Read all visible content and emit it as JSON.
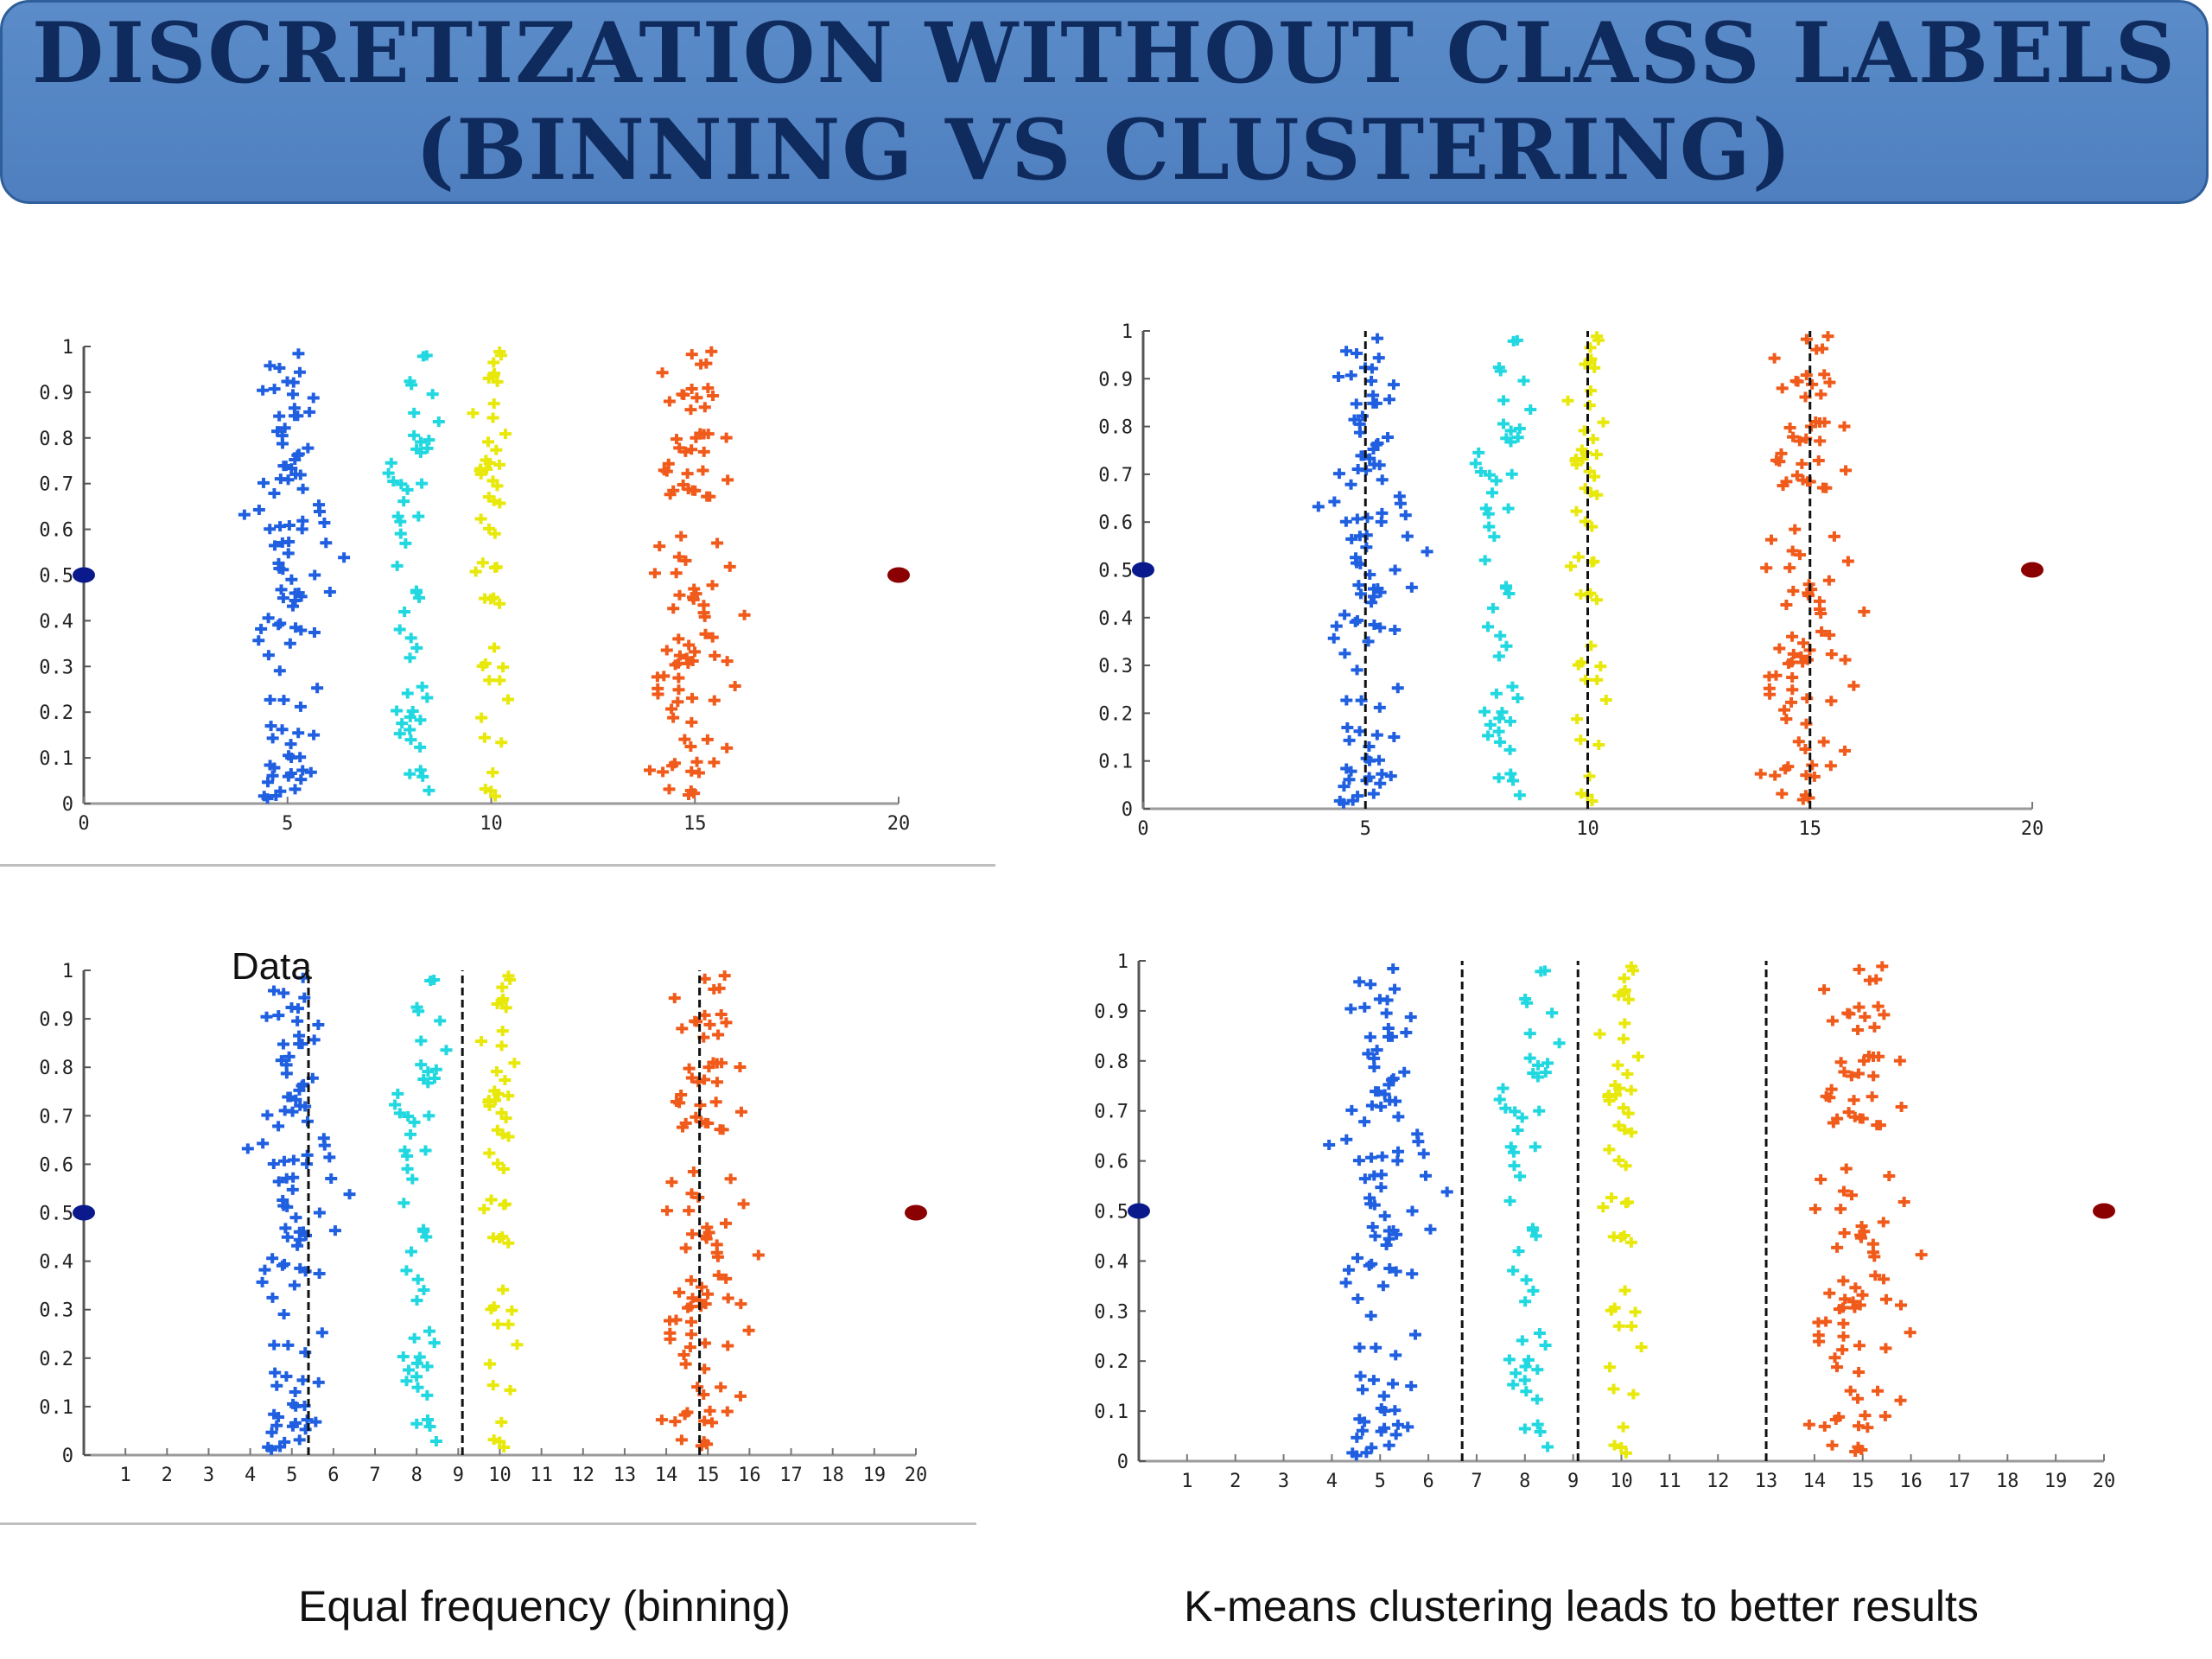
{
  "title": {
    "line1": "DISCRETIZATION WITHOUT CLASS LABELS",
    "line2": "(BINNING VS CLUSTERING)"
  },
  "colors": {
    "banner": "#4f7fbf",
    "title_text": "#0f2a5c",
    "cluster_blue": "#1f5fe0",
    "cluster_cyan": "#22d8e0",
    "cluster_yellow": "#e8e80a",
    "cluster_orange": "#f05a1a",
    "left_marker": "#0a1a8c",
    "right_marker": "#8b0000"
  },
  "captions": {
    "left": "Equal frequency (binning)",
    "right": "K-means clustering leads to better results"
  },
  "chart_data": [
    {
      "type": "scatter",
      "title": "",
      "xlabel": "",
      "ylabel": "",
      "xlim": [
        0,
        20
      ],
      "ylim": [
        0,
        1
      ],
      "xticks": [
        0,
        5,
        10,
        15,
        20
      ],
      "yticks": [
        0,
        0.1,
        0.2,
        0.3,
        0.4,
        0.5,
        0.6,
        0.7,
        0.8,
        0.9,
        1
      ],
      "ytick_labels": [
        "0",
        "0.1",
        "0.2",
        "0.3",
        "0.4",
        "0.5",
        "0.6",
        "0.7",
        "0.8",
        "0.9",
        "1"
      ],
      "clusters": [
        {
          "color": "#1f5fe0",
          "x_center": 5,
          "x_spread": 1.0,
          "count": 100
        },
        {
          "color": "#22d8e0",
          "x_center": 8,
          "x_spread": 0.5,
          "count": 50
        },
        {
          "color": "#e8e80a",
          "x_center": 10,
          "x_spread": 0.4,
          "count": 50
        },
        {
          "color": "#f05a1a",
          "x_center": 15,
          "x_spread": 0.9,
          "count": 100
        }
      ],
      "markers": [
        {
          "x": 0,
          "y": 0.5,
          "color": "#0a1a8c"
        },
        {
          "x": 20,
          "y": 0.5,
          "color": "#8b0000"
        }
      ],
      "vlines": [],
      "annotation": ""
    },
    {
      "type": "scatter",
      "title": "",
      "xlabel": "",
      "ylabel": "",
      "xlim": [
        0,
        20
      ],
      "ylim": [
        0,
        1
      ],
      "xticks": [
        0,
        5,
        10,
        15,
        20
      ],
      "yticks": [
        0,
        0.1,
        0.2,
        0.3,
        0.4,
        0.5,
        0.6,
        0.7,
        0.8,
        0.9,
        1
      ],
      "ytick_labels": [
        "0",
        "0.1",
        "0.2",
        "0.3",
        "0.4",
        "0.5",
        "0.6",
        "0.7",
        "0.8",
        "0.9",
        "1"
      ],
      "clusters": [
        {
          "color": "#1f5fe0",
          "x_center": 5,
          "x_spread": 1.0,
          "count": 100
        },
        {
          "color": "#22d8e0",
          "x_center": 8,
          "x_spread": 0.5,
          "count": 50
        },
        {
          "color": "#e8e80a",
          "x_center": 10,
          "x_spread": 0.4,
          "count": 50
        },
        {
          "color": "#f05a1a",
          "x_center": 15,
          "x_spread": 0.9,
          "count": 100
        }
      ],
      "markers": [
        {
          "x": 0,
          "y": 0.5,
          "color": "#0a1a8c"
        },
        {
          "x": 20,
          "y": 0.5,
          "color": "#8b0000"
        }
      ],
      "vlines": [
        5,
        10,
        15
      ],
      "annotation": ""
    },
    {
      "type": "scatter",
      "title": "",
      "xlabel": "",
      "ylabel": "",
      "xlim": [
        0,
        20
      ],
      "ylim": [
        0,
        1
      ],
      "xticks": [
        1,
        2,
        3,
        4,
        5,
        6,
        7,
        8,
        9,
        10,
        11,
        12,
        13,
        14,
        15,
        16,
        17,
        18,
        19,
        20
      ],
      "yticks": [
        0,
        0.1,
        0.2,
        0.3,
        0.4,
        0.5,
        0.6,
        0.7,
        0.8,
        0.9,
        1
      ],
      "ytick_labels": [
        "0",
        "0.1",
        "0.2",
        "0.3",
        "0.4",
        "0.5",
        "0.6",
        "0.7",
        "0.8",
        "0.9",
        "1"
      ],
      "clusters": [
        {
          "color": "#1f5fe0",
          "x_center": 5,
          "x_spread": 1.0,
          "count": 100
        },
        {
          "color": "#22d8e0",
          "x_center": 8,
          "x_spread": 0.5,
          "count": 50
        },
        {
          "color": "#e8e80a",
          "x_center": 10,
          "x_spread": 0.4,
          "count": 50
        },
        {
          "color": "#f05a1a",
          "x_center": 15,
          "x_spread": 0.9,
          "count": 100
        }
      ],
      "markers": [
        {
          "x": 0,
          "y": 0.5,
          "color": "#0a1a8c"
        },
        {
          "x": 20,
          "y": 0.5,
          "color": "#8b0000"
        }
      ],
      "vlines": [
        5.4,
        9.1,
        14.8
      ],
      "annotation": "Data"
    },
    {
      "type": "scatter",
      "title": "",
      "xlabel": "",
      "ylabel": "",
      "xlim": [
        0,
        20
      ],
      "ylim": [
        0,
        1
      ],
      "xticks": [
        1,
        2,
        3,
        4,
        5,
        6,
        7,
        8,
        9,
        10,
        11,
        12,
        13,
        14,
        15,
        16,
        17,
        18,
        19,
        20
      ],
      "yticks": [
        0,
        0.1,
        0.2,
        0.3,
        0.4,
        0.5,
        0.6,
        0.7,
        0.8,
        0.9,
        1
      ],
      "ytick_labels": [
        "0",
        "0.1",
        "0.2",
        "0.3",
        "0.4",
        "0.5",
        "0.6",
        "0.7",
        "0.8",
        "0.9",
        "1"
      ],
      "clusters": [
        {
          "color": "#1f5fe0",
          "x_center": 5,
          "x_spread": 1.0,
          "count": 100
        },
        {
          "color": "#22d8e0",
          "x_center": 8,
          "x_spread": 0.5,
          "count": 50
        },
        {
          "color": "#e8e80a",
          "x_center": 10,
          "x_spread": 0.4,
          "count": 50
        },
        {
          "color": "#f05a1a",
          "x_center": 15,
          "x_spread": 0.9,
          "count": 100
        }
      ],
      "markers": [
        {
          "x": 0,
          "y": 0.5,
          "color": "#0a1a8c"
        },
        {
          "x": 20,
          "y": 0.5,
          "color": "#8b0000"
        }
      ],
      "vlines": [
        6.7,
        9.1,
        13.0
      ],
      "annotation": ""
    }
  ]
}
